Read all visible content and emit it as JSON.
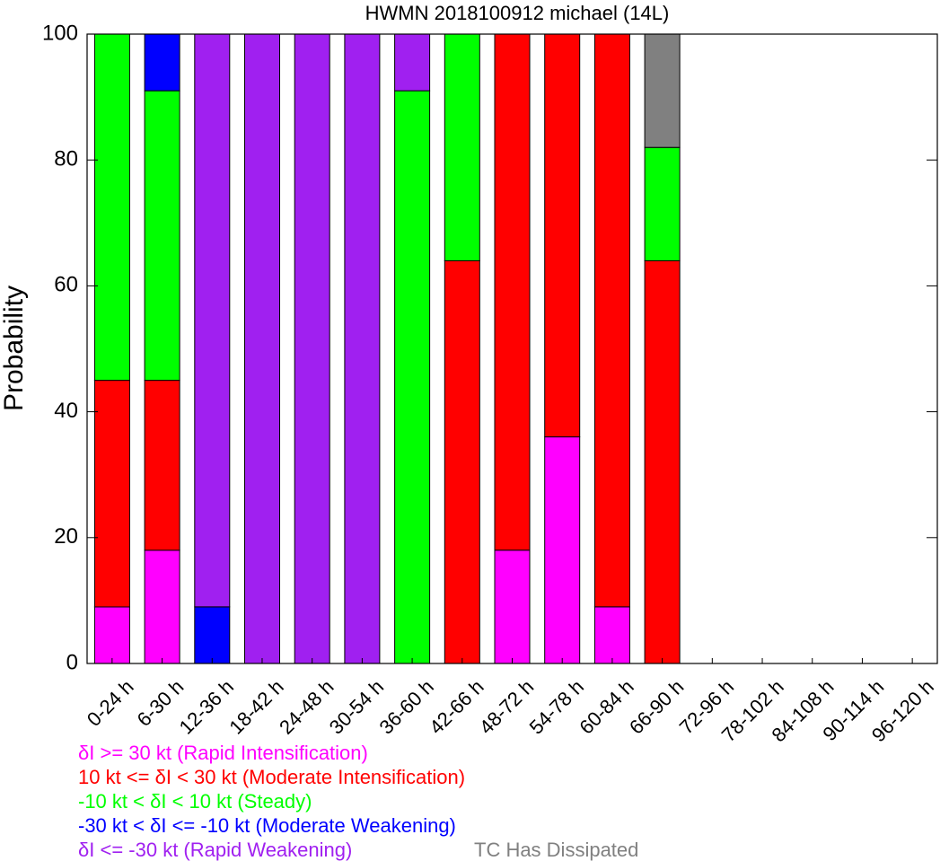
{
  "chart_data": {
    "type": "bar",
    "stacked": true,
    "title": "HWMN 2018100912 michael (14L)",
    "xlabel": "",
    "ylabel": "Probability",
    "ylim": [
      0,
      100
    ],
    "yticks": [
      0,
      20,
      40,
      60,
      80,
      100
    ],
    "categories": [
      "0-24 h",
      "6-30 h",
      "12-36 h",
      "18-42 h",
      "24-48 h",
      "30-54 h",
      "36-60 h",
      "42-66 h",
      "48-72 h",
      "54-78 h",
      "60-84 h",
      "66-90 h",
      "72-96 h",
      "78-102 h",
      "84-108 h",
      "90-114 h",
      "96-120 h"
    ],
    "series": [
      {
        "name": "δI >= 30 kt (Rapid Intensification)",
        "color": "#ff00ff",
        "values": [
          9,
          18,
          0,
          0,
          0,
          0,
          0,
          0,
          18,
          36,
          9,
          0,
          0,
          0,
          0,
          0,
          0
        ]
      },
      {
        "name": "10 kt <= δI < 30 kt (Moderate Intensification)",
        "color": "#ff0000",
        "values": [
          36,
          27,
          0,
          0,
          0,
          0,
          0,
          64,
          82,
          64,
          91,
          64,
          0,
          0,
          0,
          0,
          0
        ]
      },
      {
        "name": "-10 kt < δI < 10 kt (Steady)",
        "color": "#00ff00",
        "values": [
          55,
          46,
          0,
          0,
          0,
          0,
          91,
          36,
          0,
          0,
          0,
          18,
          0,
          0,
          0,
          0,
          0
        ]
      },
      {
        "name": "-30 kt < δI <= -10 kt (Moderate Weakening)",
        "color": "#0000ff",
        "values": [
          0,
          9,
          9,
          0,
          0,
          0,
          0,
          0,
          0,
          0,
          0,
          0,
          0,
          0,
          0,
          0,
          0
        ]
      },
      {
        "name": "δI <= -30 kt (Rapid Weakening)",
        "color": "#a020f0",
        "values": [
          0,
          0,
          91,
          100,
          100,
          100,
          9,
          0,
          0,
          0,
          0,
          0,
          0,
          0,
          0,
          0,
          0
        ]
      },
      {
        "name": "TC Has Dissipated",
        "color": "#808080",
        "values": [
          0,
          0,
          0,
          0,
          0,
          0,
          0,
          0,
          0,
          0,
          0,
          18,
          0,
          0,
          0,
          0,
          0
        ]
      }
    ],
    "legend_placement": "bottom",
    "grid": false
  }
}
